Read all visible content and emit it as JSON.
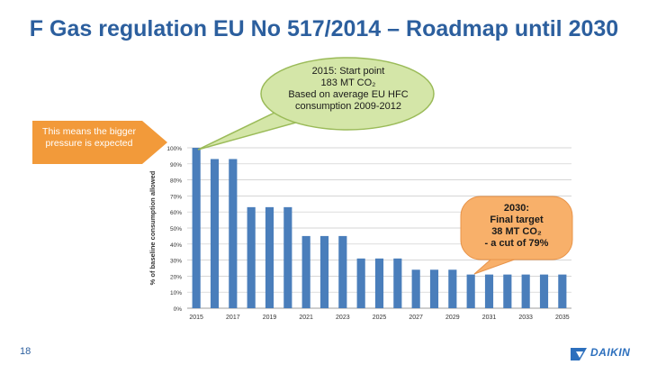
{
  "slide": {
    "title": "F Gas regulation EU No 517/2014 – Roadmap until 2030",
    "page_number": "18",
    "logo_text": "DAIKIN"
  },
  "callouts": {
    "arrow_text": "This means the bigger pressure is expected",
    "start_bubble": [
      "2015: Start point",
      "183 MT CO₂",
      "Based on average EU HFC",
      "consumption 2009-2012"
    ],
    "target_bubble": [
      "2030:",
      "Final target",
      "38 MT CO₂",
      "- a cut of 79%"
    ]
  },
  "colors": {
    "title": "#2c5f9e",
    "bar": "#4a7ebb",
    "bubble_fill": "#d4e6a8",
    "bubble_stroke": "#9bbb59",
    "target_fill": "#f8b06a",
    "arrow": "#f29a3a"
  },
  "chart_data": {
    "type": "bar",
    "ylabel": "% of baseline consumption allowed",
    "ylim": [
      0,
      100
    ],
    "ytick_labels": [
      "0%",
      "10%",
      "20%",
      "30%",
      "40%",
      "50%",
      "60%",
      "70%",
      "80%",
      "90%",
      "100%"
    ],
    "xtick_labels": [
      "2015",
      "2017",
      "2019",
      "2021",
      "2023",
      "2025",
      "2027",
      "2029",
      "2031",
      "2033",
      "2035"
    ],
    "categories": [
      "2015",
      "2016",
      "2017",
      "2018",
      "2019",
      "2020",
      "2021",
      "2022",
      "2023",
      "2024",
      "2025",
      "2026",
      "2027",
      "2028",
      "2029",
      "2030",
      "2031",
      "2032",
      "2033",
      "2034",
      "2035"
    ],
    "values": [
      100,
      93,
      93,
      63,
      63,
      63,
      45,
      45,
      45,
      31,
      31,
      31,
      24,
      24,
      24,
      21,
      21,
      21,
      21,
      21,
      21
    ],
    "grid": true
  }
}
